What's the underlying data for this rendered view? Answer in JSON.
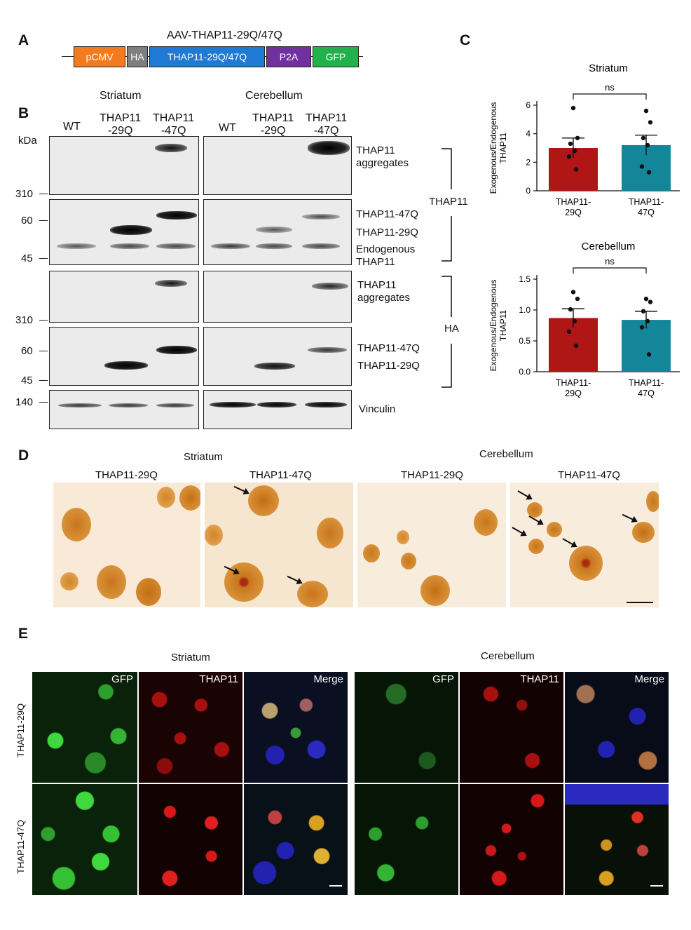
{
  "panels": {
    "a": "A",
    "b": "B",
    "c": "C",
    "d": "D",
    "e": "E"
  },
  "construct": {
    "title": "AAV-THAP11-29Q/47Q",
    "segments": [
      {
        "label": "pCMV",
        "color": "#f47a20"
      },
      {
        "label": "HA",
        "color": "#7f7f7f"
      },
      {
        "label": "THAP11-29Q/47Q",
        "color": "#1f7ad4"
      },
      {
        "label": "P2A",
        "color": "#7030a0"
      },
      {
        "label": "GFP",
        "color": "#21b24b"
      }
    ]
  },
  "western": {
    "region_striatum": "Striatum",
    "region_cerebellum": "Cerebellum",
    "lanes": [
      "WT",
      "THAP11\n-29Q",
      "THAP11\n-47Q",
      "WT",
      "THAP11\n-29Q",
      "THAP11\n-47Q"
    ],
    "kda": "kDa",
    "markers": [
      "310",
      "60",
      "45",
      "310",
      "60",
      "45",
      "140"
    ],
    "labels": {
      "agg1": "THAP11\naggregates",
      "t47": "THAP11-47Q",
      "t29": "THAP11-29Q",
      "endo": "Endogenous\nTHAP11",
      "agg2": "THAP11\naggregates",
      "ha47": "THAP11-47Q",
      "ha29": "THAP11-29Q",
      "vinc": "Vinculin"
    },
    "brackets": {
      "thap": "THAP11",
      "ha": "HA"
    }
  },
  "chart_data": [
    {
      "type": "bar",
      "title": "Striatum",
      "ylabel": "Exogenous/Endogenous\nTHAP11",
      "categories": [
        "THAP11-\n29Q",
        "THAP11-\n47Q"
      ],
      "values": [
        3.0,
        3.2
      ],
      "sem": [
        0.7,
        0.7
      ],
      "points": [
        [
          5.8,
          3.7,
          3.3,
          2.8,
          2.4,
          1.5
        ],
        [
          5.6,
          4.8,
          3.7,
          3.2,
          1.7,
          1.3
        ]
      ],
      "colors": [
        "#b01616",
        "#13869a"
      ],
      "ylim": [
        0,
        6
      ],
      "yticks": [
        "0",
        "2",
        "4",
        "6"
      ],
      "sig": "ns"
    },
    {
      "type": "bar",
      "title": "Cerebellum",
      "ylabel": "Exogenous/Endogenous\nTHAP11",
      "categories": [
        "THAP11-\n29Q",
        "THAP11-\n47Q"
      ],
      "values": [
        0.87,
        0.84
      ],
      "sem": [
        0.15,
        0.14
      ],
      "points": [
        [
          1.29,
          1.18,
          1.01,
          0.82,
          0.65,
          0.42
        ],
        [
          1.18,
          1.13,
          0.98,
          0.82,
          0.72,
          0.28
        ]
      ],
      "colors": [
        "#b01616",
        "#13869a"
      ],
      "ylim": [
        0,
        1.5
      ],
      "yticks": [
        "0.0",
        "0.5",
        "1.0",
        "1.5"
      ],
      "sig": "ns"
    }
  ],
  "ihc": {
    "region_striatum": "Striatum",
    "region_cerebellum": "Cerebellum",
    "cols": [
      "THAP11-29Q",
      "THAP11-47Q",
      "THAP11-29Q",
      "THAP11-47Q"
    ]
  },
  "if_panel": {
    "region_striatum": "Striatum",
    "region_cerebellum": "Cerebellum",
    "channels": [
      "GFP",
      "THAP11",
      "Merge",
      "GFP",
      "THAP11",
      "Merge"
    ],
    "rows": [
      "THAP11-29Q",
      "THAP11-47Q"
    ]
  }
}
